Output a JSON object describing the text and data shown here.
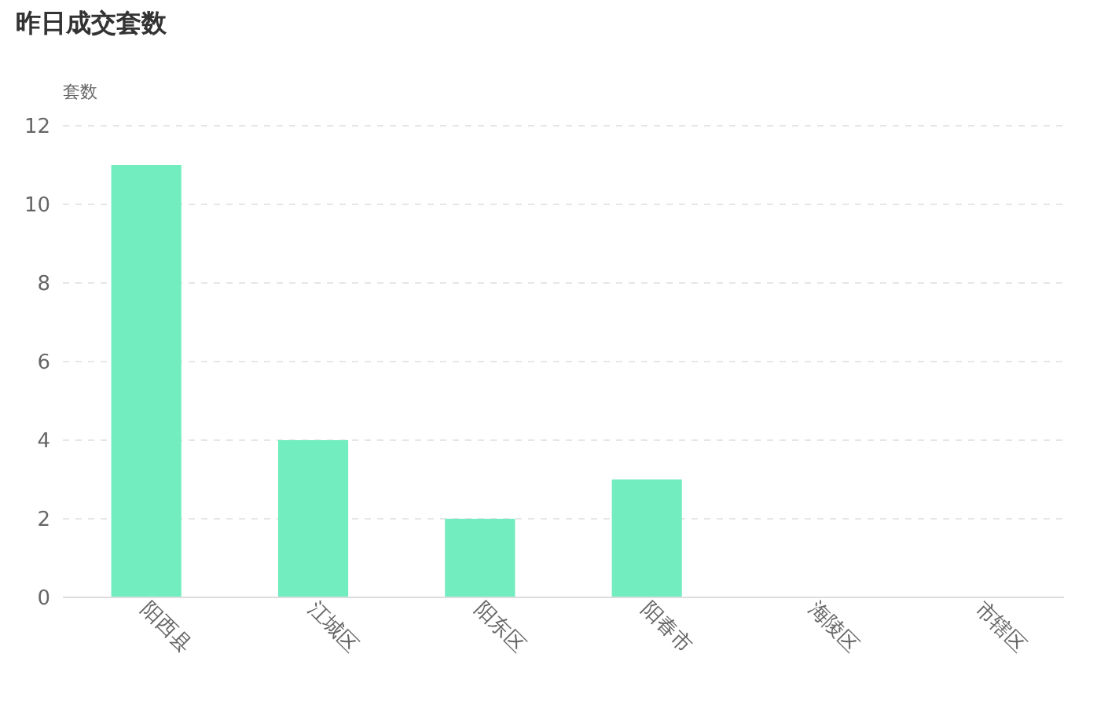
{
  "chart_data": {
    "type": "bar",
    "title": "昨日成交套数",
    "ylabel": "套数",
    "categories": [
      "阳西县",
      "江城区",
      "阳东区",
      "阳春市",
      "海陵区",
      "市辖区"
    ],
    "values": [
      11,
      4,
      2,
      3,
      0,
      0
    ],
    "color": "#72edc0",
    "ylim": [
      0,
      12
    ],
    "yticks": [
      0,
      2,
      4,
      6,
      8,
      10,
      12
    ],
    "grid": "y"
  }
}
